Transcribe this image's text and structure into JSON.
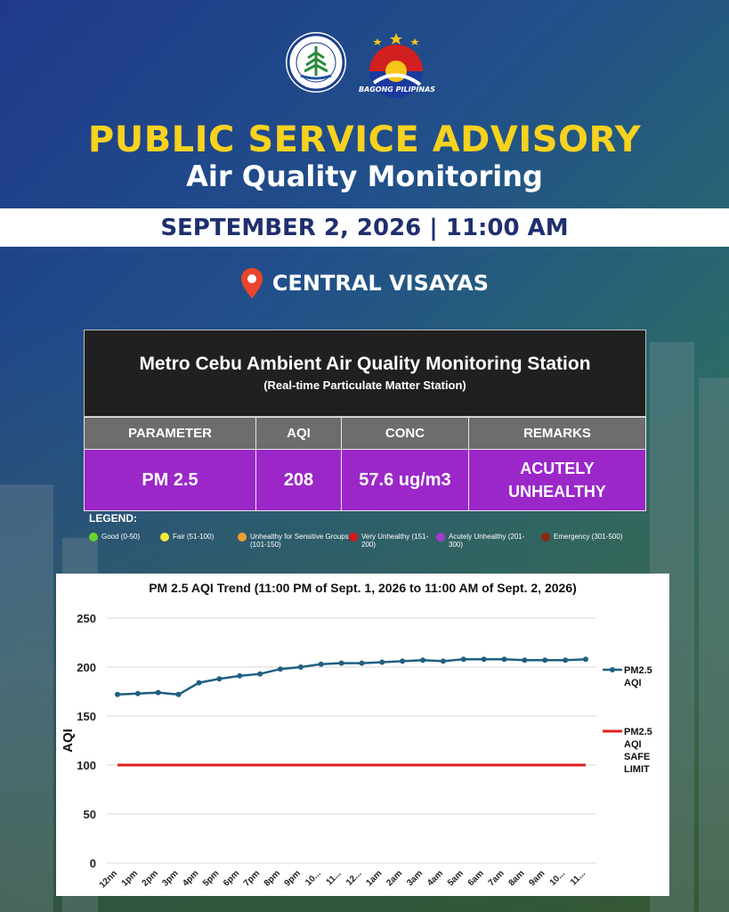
{
  "header": {
    "brand_label": "BAGONG PILIPINAS",
    "title": "PUBLIC SERVICE ADVISORY",
    "subtitle": "Air Quality Monitoring",
    "datetime": "SEPTEMBER 2, 2026 | 11:00 AM",
    "region": "CENTRAL VISAYAS"
  },
  "station": {
    "name": "Metro Cebu Ambient Air Quality Monitoring Station",
    "type": "(Real-time Particulate Matter Station)"
  },
  "table": {
    "headers": [
      "PARAMETER",
      "AQI",
      "CONC",
      "REMARKS"
    ],
    "row": [
      "PM 2.5",
      "208",
      "57.6 ug/m3",
      "ACUTELY UNHEALTHY"
    ]
  },
  "legend": {
    "title": "LEGEND:",
    "items": [
      {
        "label": "Good (0-50)",
        "color": "#66d62a"
      },
      {
        "label": "Fair (51-100)",
        "color": "#f2e93a"
      },
      {
        "label": "Unhealthy for Sensitive Groups (101-150)",
        "color": "#f0a030"
      },
      {
        "label": "Very Unhealthy (151-200)",
        "color": "#d01818"
      },
      {
        "label": "Acutely Unhealthy (201-300)",
        "color": "#a23ad0"
      },
      {
        "label": "Emergency (301-500)",
        "color": "#8a2a10"
      }
    ]
  },
  "chart_data": {
    "type": "line",
    "title": "PM 2.5 AQI Trend (11:00 PM of Sept. 1, 2026 to 11:00 AM of Sept. 2, 2026)",
    "ylabel": "AQI",
    "xlabel": "",
    "ylim": [
      0,
      250
    ],
    "yticks": [
      0,
      50,
      100,
      150,
      200,
      250
    ],
    "categories": [
      "12nn",
      "1pm",
      "2pm",
      "3pm",
      "4pm",
      "5pm",
      "6pm",
      "7pm",
      "8pm",
      "9pm",
      "10...",
      "11...",
      "12...",
      "1am",
      "2am",
      "3am",
      "4am",
      "5am",
      "6am",
      "7am",
      "8am",
      "9am",
      "10...",
      "11..."
    ],
    "series": [
      {
        "name": "PM2.5 AQI",
        "color": "#1f5f82",
        "values": [
          172,
          173,
          174,
          172,
          184,
          188,
          191,
          193,
          198,
          200,
          203,
          204,
          204,
          205,
          206,
          207,
          206,
          208,
          208,
          208,
          207,
          207,
          207,
          208
        ]
      },
      {
        "name": "PM2.5 AQI SAFE LIMIT",
        "color": "#e02020",
        "values": [
          100,
          100,
          100,
          100,
          100,
          100,
          100,
          100,
          100,
          100,
          100,
          100,
          100,
          100,
          100,
          100,
          100,
          100,
          100,
          100,
          100,
          100,
          100,
          100
        ]
      }
    ]
  }
}
